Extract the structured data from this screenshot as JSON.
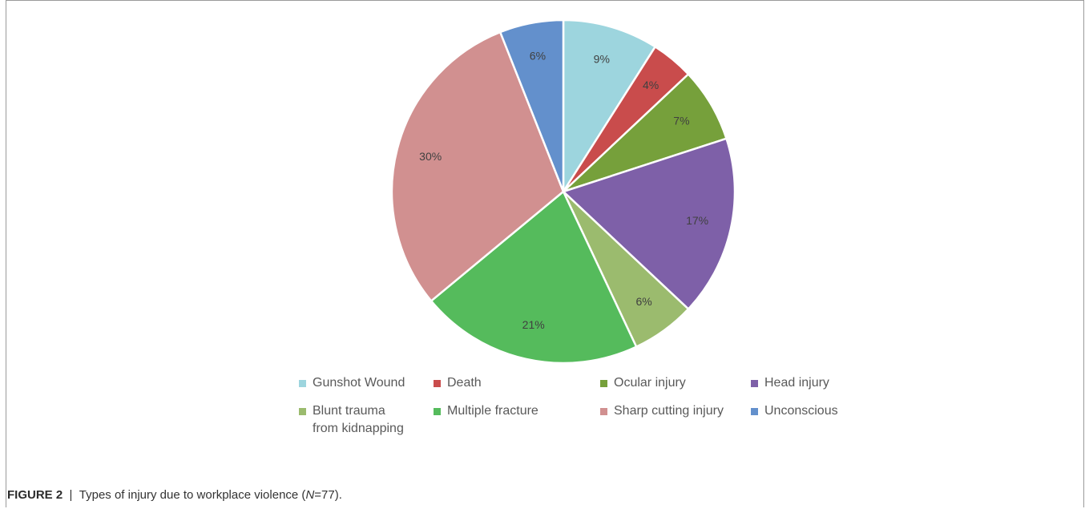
{
  "chart_data": {
    "type": "pie",
    "title": "",
    "categories": [
      "Gunshot Wound",
      "Death",
      "Ocular injury",
      "Head injury",
      "Blunt trauma\nfrom kidnapping",
      "Multiple fracture",
      "Sharp cutting injury",
      "Unconscious"
    ],
    "values": [
      9,
      4,
      7,
      17,
      6,
      21,
      30,
      6
    ],
    "labels": [
      "9%",
      "4%",
      "7%",
      "17%",
      "6%",
      "21%",
      "30%",
      "6%"
    ],
    "colors": [
      "#9dd5de",
      "#c94c4c",
      "#76a03b",
      "#7e60a8",
      "#9bbb6e",
      "#55bb5c",
      "#d19090",
      "#6390cc"
    ],
    "start_angle": "12 o'clock",
    "direction": "clockwise",
    "legend_position": "bottom"
  },
  "caption": {
    "label": "FIGURE 2",
    "separator": "|",
    "text_before": "Types of injury due to workplace violence (",
    "n_symbol": "N",
    "text_after": "=77)."
  }
}
